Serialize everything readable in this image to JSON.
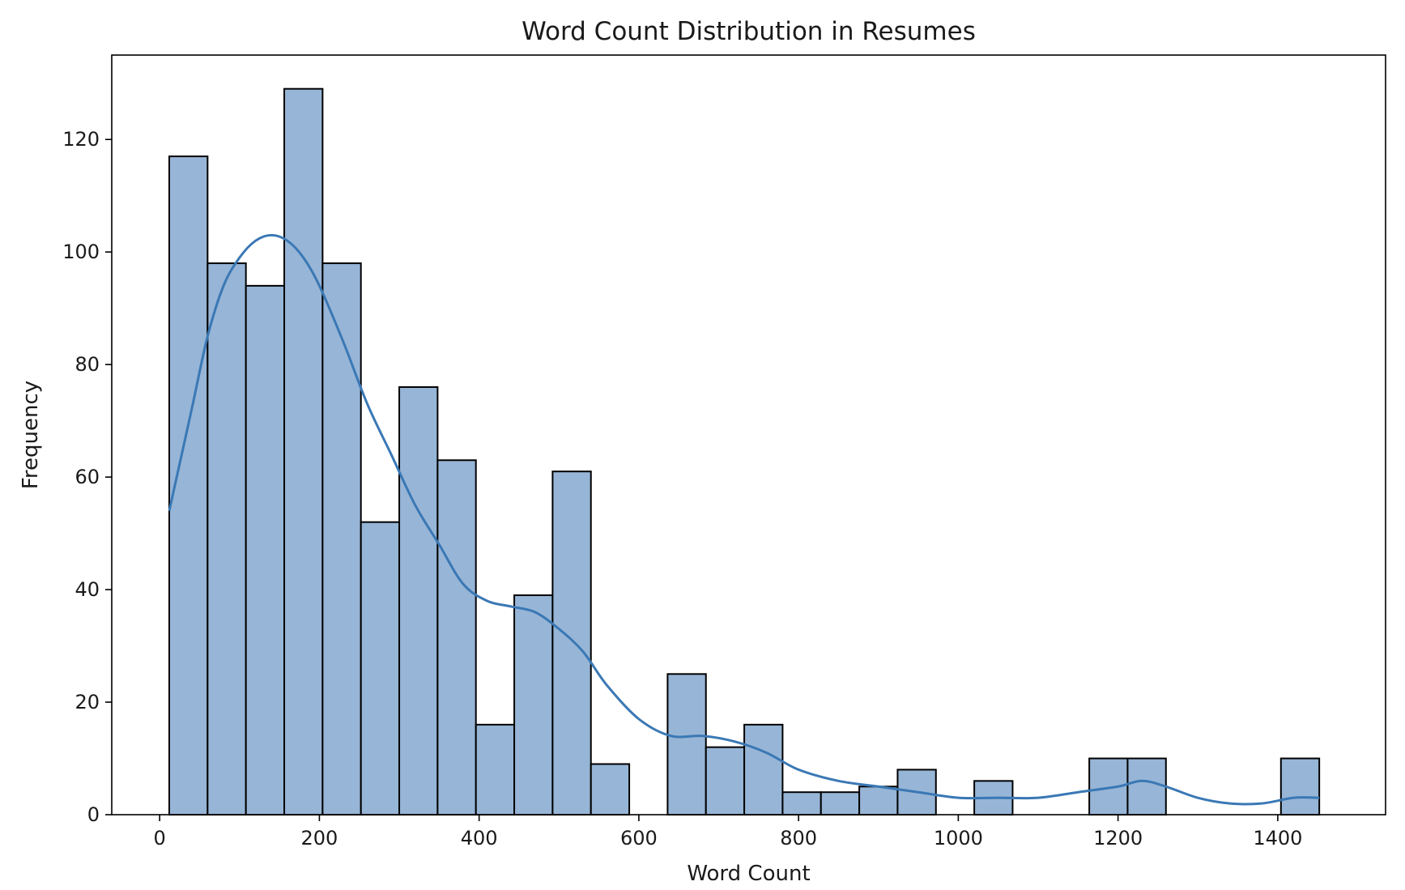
{
  "chart_data": {
    "type": "bar",
    "subtype": "histogram-with-kde",
    "title": "Word Count Distribution in Resumes",
    "xlabel": "Word Count",
    "ylabel": "Frequency",
    "xlim": [
      -60,
      1535
    ],
    "ylim": [
      0,
      135
    ],
    "xticks": [
      0,
      200,
      400,
      600,
      800,
      1000,
      1200,
      1400
    ],
    "yticks": [
      0,
      20,
      40,
      60,
      80,
      100,
      120
    ],
    "bin_width": 48,
    "bins": [
      {
        "x0": 12,
        "x1": 60,
        "count": 117
      },
      {
        "x0": 60,
        "x1": 108,
        "count": 98
      },
      {
        "x0": 108,
        "x1": 156,
        "count": 94
      },
      {
        "x0": 156,
        "x1": 204,
        "count": 129
      },
      {
        "x0": 204,
        "x1": 252,
        "count": 98
      },
      {
        "x0": 252,
        "x1": 300,
        "count": 52
      },
      {
        "x0": 300,
        "x1": 348,
        "count": 76
      },
      {
        "x0": 348,
        "x1": 396,
        "count": 63
      },
      {
        "x0": 396,
        "x1": 444,
        "count": 16
      },
      {
        "x0": 444,
        "x1": 492,
        "count": 39
      },
      {
        "x0": 492,
        "x1": 540,
        "count": 61
      },
      {
        "x0": 540,
        "x1": 588,
        "count": 9
      },
      {
        "x0": 588,
        "x1": 636,
        "count": 0
      },
      {
        "x0": 636,
        "x1": 684,
        "count": 25
      },
      {
        "x0": 684,
        "x1": 732,
        "count": 12
      },
      {
        "x0": 732,
        "x1": 780,
        "count": 16
      },
      {
        "x0": 780,
        "x1": 828,
        "count": 4
      },
      {
        "x0": 828,
        "x1": 876,
        "count": 4
      },
      {
        "x0": 876,
        "x1": 924,
        "count": 5
      },
      {
        "x0": 924,
        "x1": 972,
        "count": 8
      },
      {
        "x0": 972,
        "x1": 1020,
        "count": 0
      },
      {
        "x0": 1020,
        "x1": 1068,
        "count": 6
      },
      {
        "x0": 1068,
        "x1": 1116,
        "count": 0
      },
      {
        "x0": 1116,
        "x1": 1164,
        "count": 0
      },
      {
        "x0": 1164,
        "x1": 1212,
        "count": 10
      },
      {
        "x0": 1212,
        "x1": 1260,
        "count": 10
      },
      {
        "x0": 1260,
        "x1": 1308,
        "count": 0
      },
      {
        "x0": 1308,
        "x1": 1356,
        "count": 0
      },
      {
        "x0": 1356,
        "x1": 1404,
        "count": 0
      },
      {
        "x0": 1404,
        "x1": 1452,
        "count": 10
      }
    ],
    "kde": {
      "x": [
        12,
        40,
        60,
        80,
        100,
        120,
        140,
        160,
        180,
        200,
        230,
        260,
        290,
        320,
        350,
        380,
        410,
        440,
        470,
        500,
        530,
        560,
        600,
        640,
        680,
        720,
        760,
        800,
        850,
        900,
        950,
        1000,
        1050,
        1100,
        1150,
        1200,
        1230,
        1260,
        1300,
        1340,
        1380,
        1420,
        1452
      ],
      "y": [
        54,
        72,
        85,
        94,
        99,
        102,
        103,
        102,
        99,
        94,
        84,
        73,
        64,
        55,
        48,
        41,
        38,
        37,
        36,
        33,
        29,
        23,
        17,
        14,
        14,
        13,
        11,
        8,
        6,
        5,
        4,
        3,
        3,
        3,
        4,
        5,
        6,
        5,
        3,
        2,
        2,
        3,
        3
      ]
    },
    "grid": false,
    "colors": {
      "bar_fill": "#97b5d6",
      "bar_edge": "#000000",
      "kde_line": "#3a78b5",
      "axes": "#000000"
    }
  }
}
